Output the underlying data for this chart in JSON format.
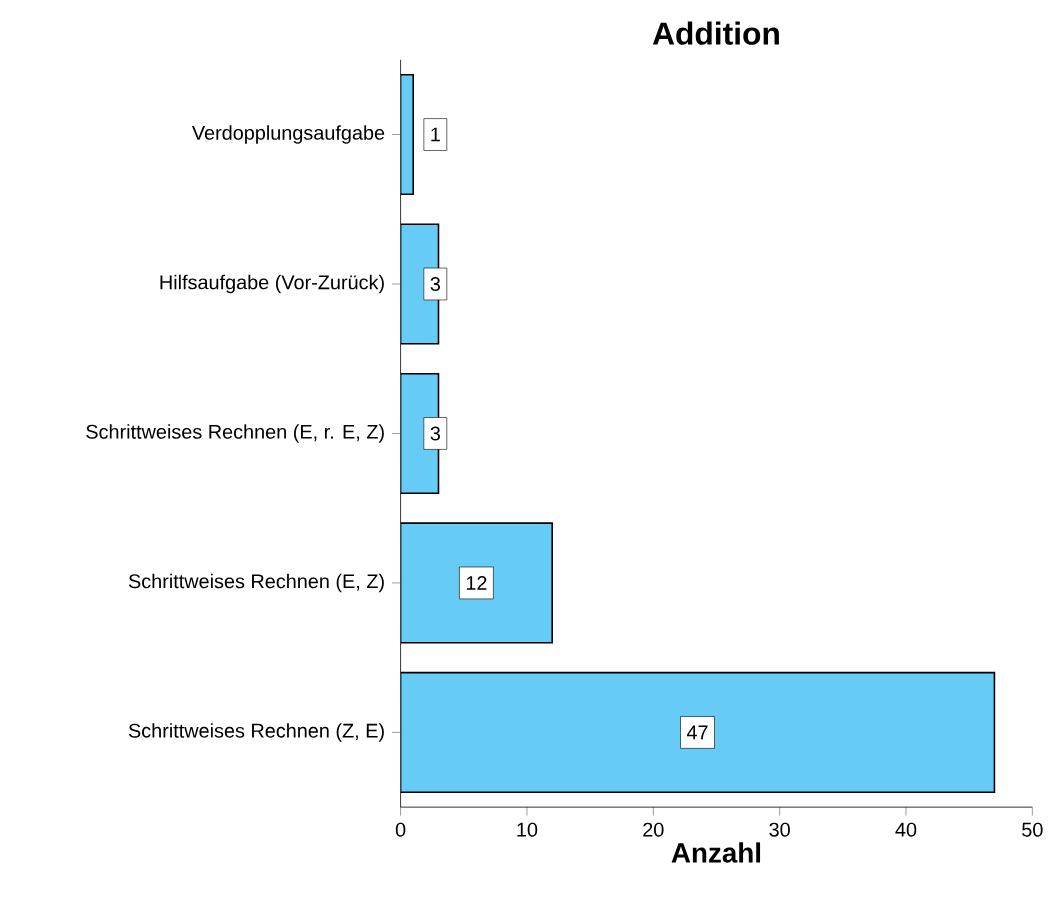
{
  "chart_data": {
    "type": "bar",
    "orientation": "horizontal",
    "title": "Addition",
    "xlabel": "Anzahl",
    "categories": [
      "Verdopplungsaufgabe",
      "Hilfsaufgabe (Vor-Zurück)",
      "Schrittweises Rechnen (E, r. E, Z)",
      "Schrittweises Rechnen (E, Z)",
      "Schrittweises Rechnen (Z, E)"
    ],
    "values": [
      1,
      3,
      3,
      12,
      47
    ],
    "color": "#66ccf5",
    "data_labels": true,
    "xlim": [
      0,
      50
    ],
    "xticks": [
      0,
      10,
      20,
      30,
      40,
      50
    ],
    "grid": false
  }
}
